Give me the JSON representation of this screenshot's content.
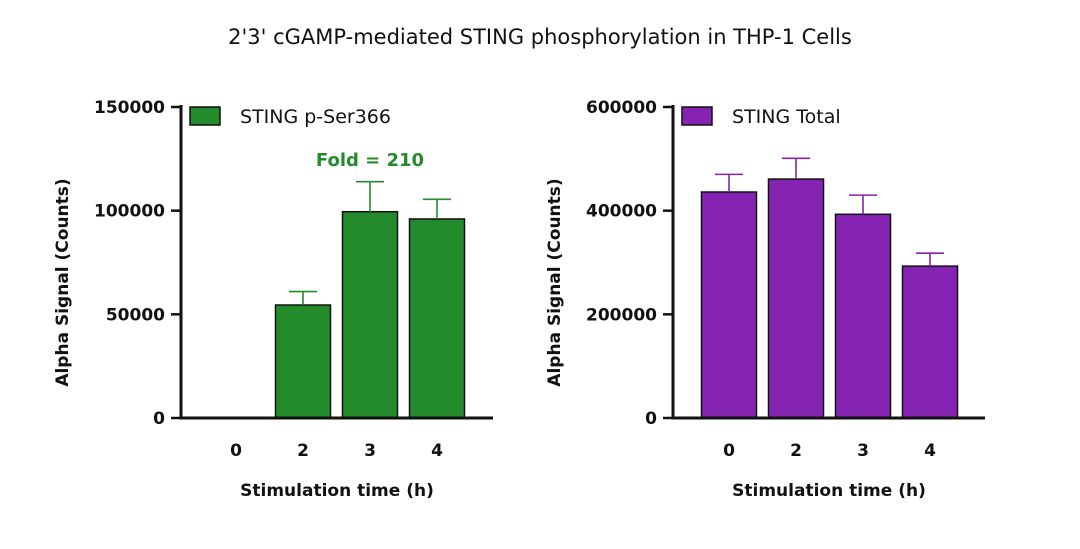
{
  "title": "2'3' cGAMP-mediated STING phosphorylation in THP-1 Cells",
  "chart_data": [
    {
      "type": "bar",
      "categories": [
        "0",
        "2",
        "3",
        "4"
      ],
      "series": [
        {
          "name": "STING p-Ser366",
          "values": [
            0,
            54500,
            99500,
            96000
          ],
          "error": [
            0,
            6500,
            14500,
            9500
          ],
          "color": "#248B2C"
        }
      ],
      "xlabel": "Stimulation time (h)",
      "ylabel": "Alpha Signal (Counts)",
      "ylim": [
        0,
        150000
      ],
      "yticks": [
        0,
        50000,
        100000,
        150000
      ],
      "ytick_labels": [
        "0",
        "50000",
        "100000",
        "150000"
      ],
      "legend": "top-left",
      "annotation": {
        "text": "Fold = 210",
        "color": "#248B2C"
      },
      "grid": false
    },
    {
      "type": "bar",
      "categories": [
        "0",
        "2",
        "3",
        "4"
      ],
      "series": [
        {
          "name": "STING Total",
          "values": [
            436000,
            461000,
            393000,
            293000
          ],
          "error": [
            34000,
            40000,
            37000,
            25000
          ],
          "color": "#8523B2"
        }
      ],
      "xlabel": "Stimulation time (h)",
      "ylabel": "Alpha Signal (Counts)",
      "ylim": [
        0,
        600000
      ],
      "yticks": [
        0,
        200000,
        400000,
        600000
      ],
      "ytick_labels": [
        "0",
        "200000",
        "400000",
        "600000"
      ],
      "legend": "top-left",
      "grid": false
    }
  ]
}
